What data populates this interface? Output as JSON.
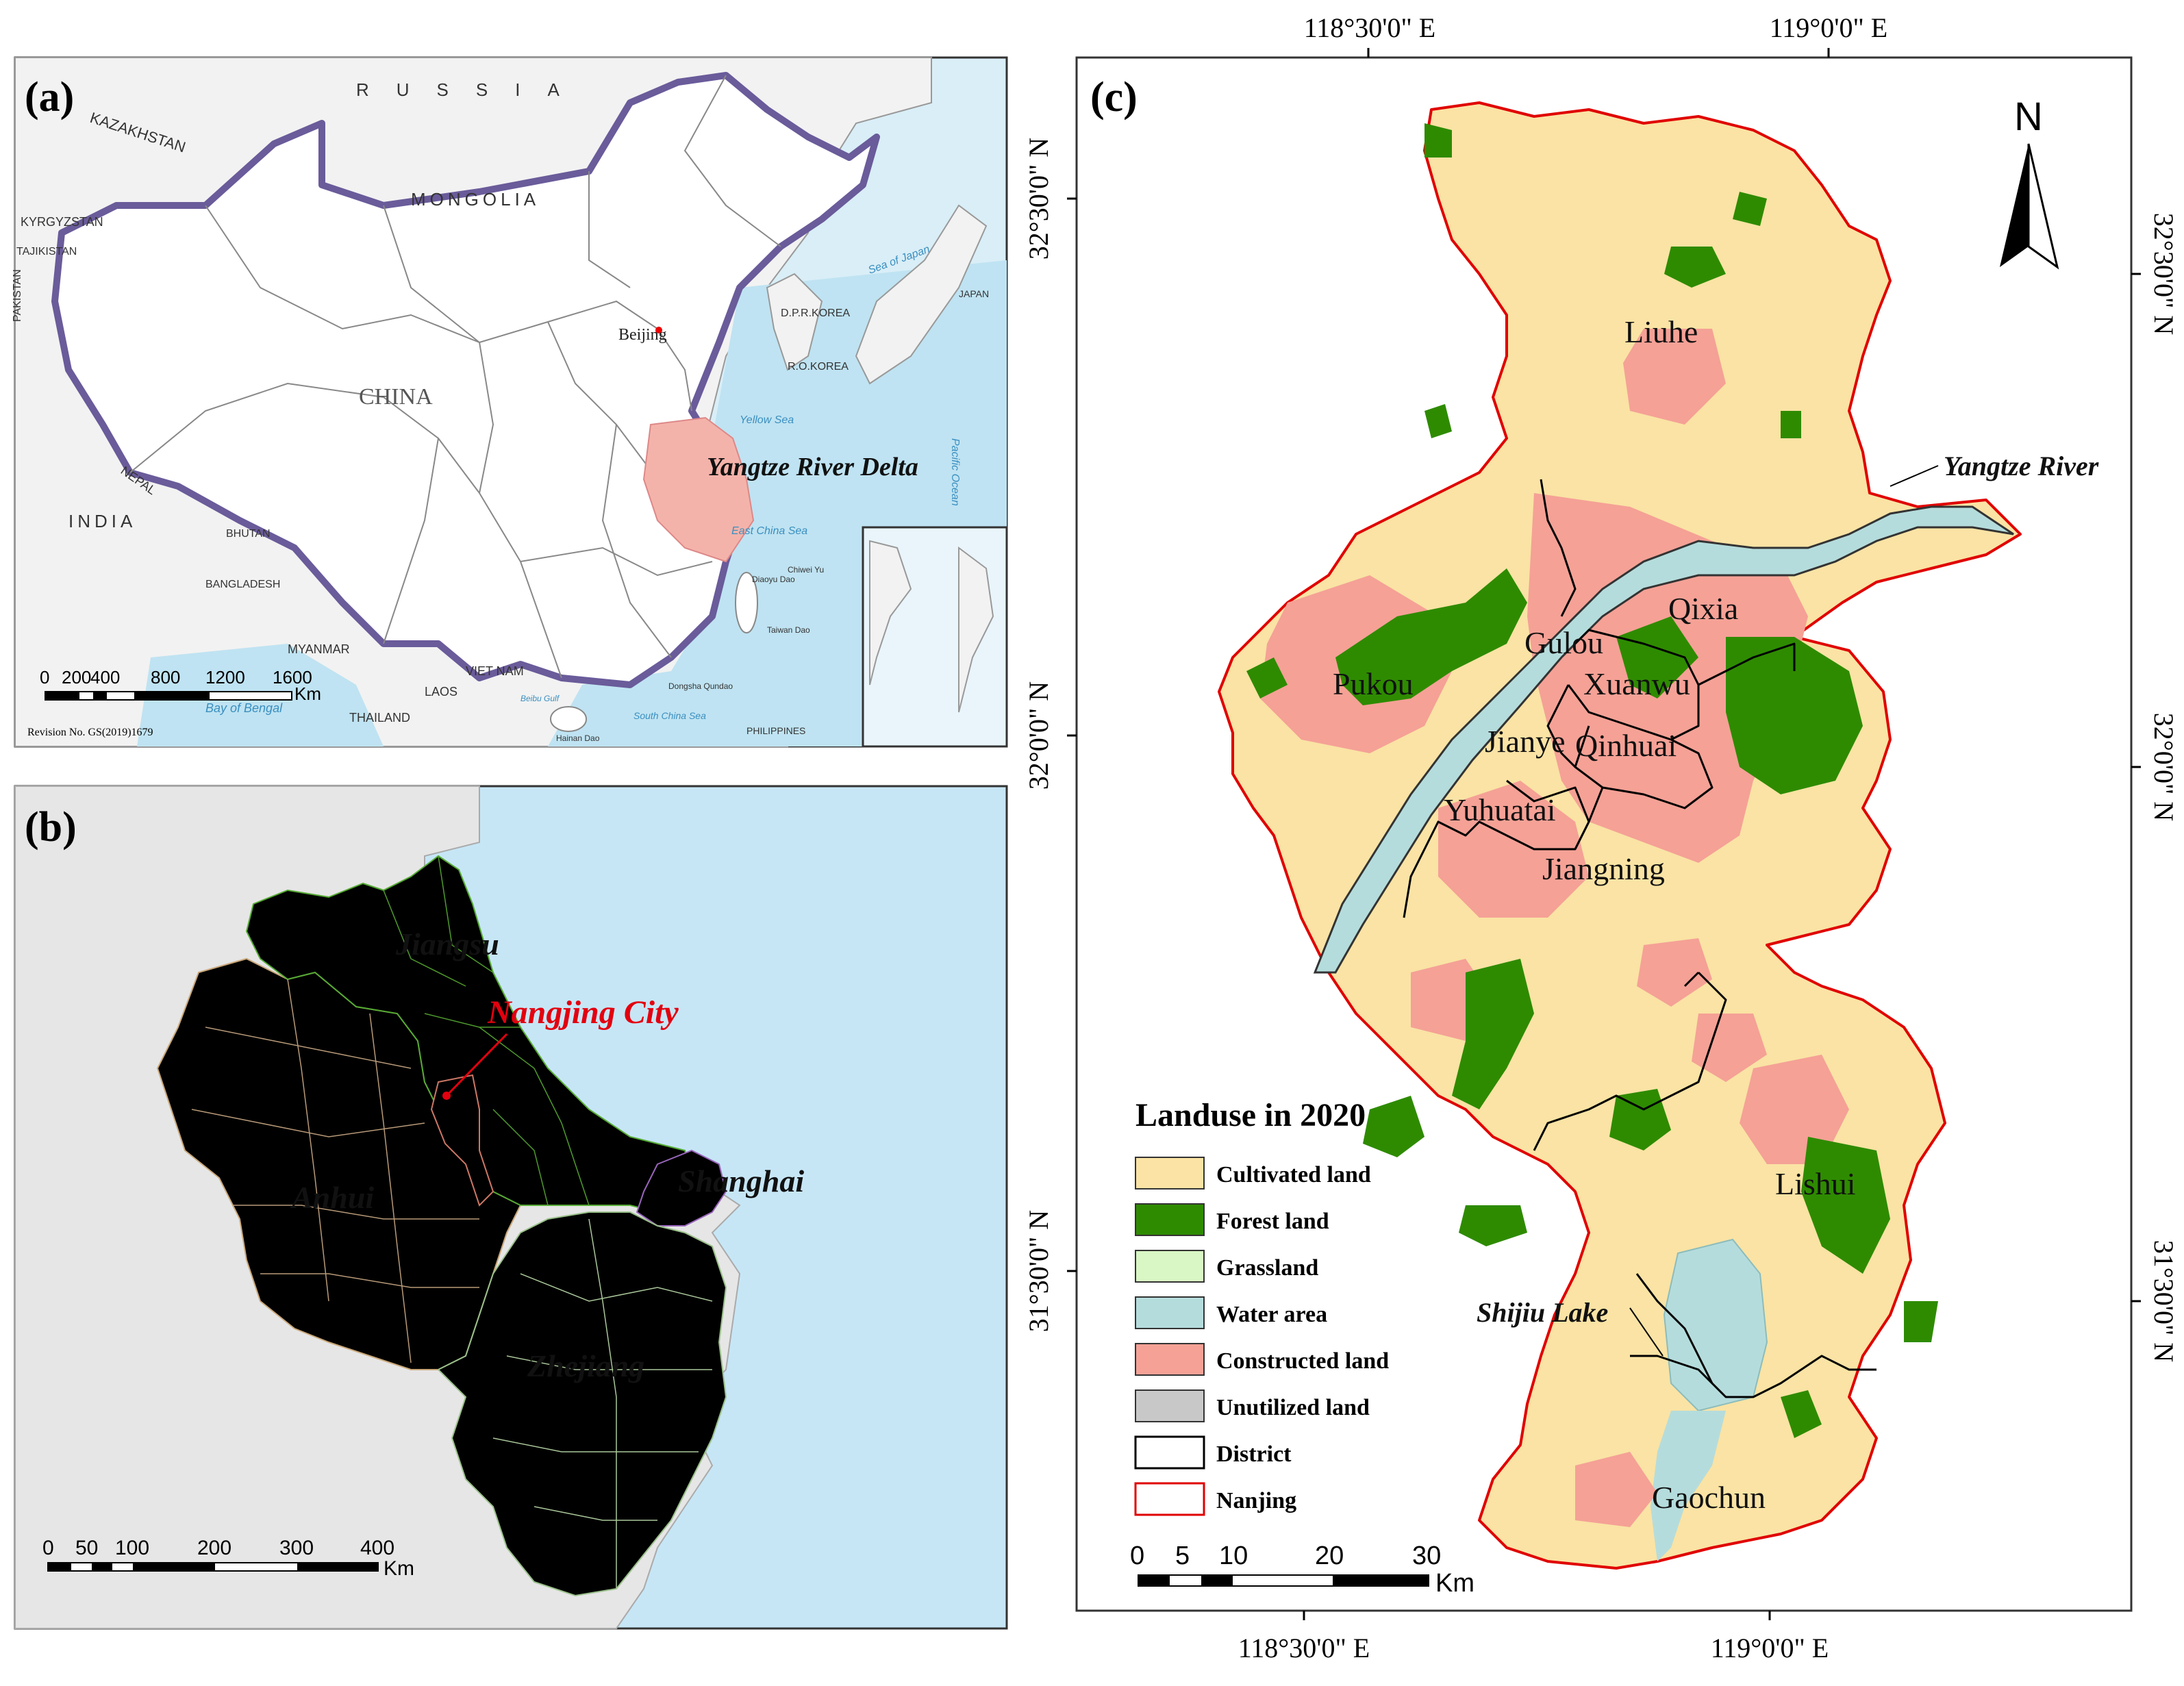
{
  "panel_a": {
    "label": "(a)",
    "countries": [
      "KAZAKHSTAN",
      "RUSSIA",
      "MONGOLIA",
      "KYRGYZSTAN",
      "TAJIKISTAN",
      "PAKISTAN",
      "NEPAL",
      "INDIA",
      "BHUTAN",
      "BANGLADESH",
      "MYANMAR",
      "LAOS",
      "VIET NAM",
      "THAILAND",
      "PHILIPPINES",
      "D.P.R.KOREA",
      "R.O.KOREA",
      "JAPAN",
      "CHINA"
    ],
    "seas": [
      "Sea of Japan",
      "Yellow Sea",
      "East China Sea",
      "South China Sea",
      "Pacific Ocean",
      "Bay of Bengal",
      "Beibu Gulf"
    ],
    "places": [
      "Beijing",
      "Taiwan Dao",
      "Hainan Dao",
      "Diaoyu Dao",
      "Chiwei Yu",
      "Dongsha Qundao"
    ],
    "highlight": "Yangtze River Delta",
    "scale": {
      "ticks": [
        "0",
        "200",
        "400",
        "800",
        "1200",
        "1600"
      ],
      "unit": "Km"
    },
    "revision": "Revision No. GS(2019)1679"
  },
  "panel_b": {
    "label": "(b)",
    "provinces": [
      {
        "name": "Jiangsu",
        "color": "#8CE866"
      },
      {
        "name": "Anhui",
        "color": "#F8DFB4"
      },
      {
        "name": "Zhejiang",
        "color": "#E6F5D6"
      },
      {
        "name": "Shanghai",
        "color": "#D9B4F0"
      }
    ],
    "city": {
      "name": "Nangjing City",
      "color": "#F4B8B0",
      "label_color": "#E3000F"
    },
    "scale": {
      "ticks": [
        "0",
        "50",
        "100",
        "200",
        "300",
        "400"
      ],
      "unit": "Km"
    }
  },
  "panel_c": {
    "label": "(c)",
    "north": "N",
    "lon_labels": [
      "118°30'0\" E",
      "119°0'0\" E"
    ],
    "lat_labels": [
      "32°30'0\" N",
      "32°0'0\" N",
      "31°30'0\" N"
    ],
    "districts": [
      "Liuhe",
      "Pukou",
      "Qixia",
      "Gulou",
      "Xuanwu",
      "Jianye",
      "Qinhuai",
      "Yuhuatai",
      "Jiangning",
      "Lishui",
      "Gaochun"
    ],
    "features": [
      "Yangtze River",
      "Shijiu Lake"
    ],
    "legend": {
      "title": "Landuse in 2020",
      "items": [
        {
          "label": "Cultivated land",
          "color": "#FAE3A4",
          "border": "#333333"
        },
        {
          "label": "Forest land",
          "color": "#2E8B00",
          "border": "#333333"
        },
        {
          "label": "Grassland",
          "color": "#D8F7C4",
          "border": "#333333"
        },
        {
          "label": "Water area",
          "color": "#B5DCDC",
          "border": "#333333"
        },
        {
          "label": "Constructed land",
          "color": "#F5A196",
          "border": "#333333"
        },
        {
          "label": "Unutilized land",
          "color": "#C8C8C8",
          "border": "#333333"
        },
        {
          "label": "District",
          "color": "#FFFFFF",
          "border": "#000000"
        },
        {
          "label": "Nanjing",
          "color": "#FFFFFF",
          "border": "#E00000"
        }
      ]
    },
    "scale": {
      "ticks": [
        "0",
        "5",
        "10",
        "20",
        "30"
      ],
      "unit": "Km"
    }
  }
}
